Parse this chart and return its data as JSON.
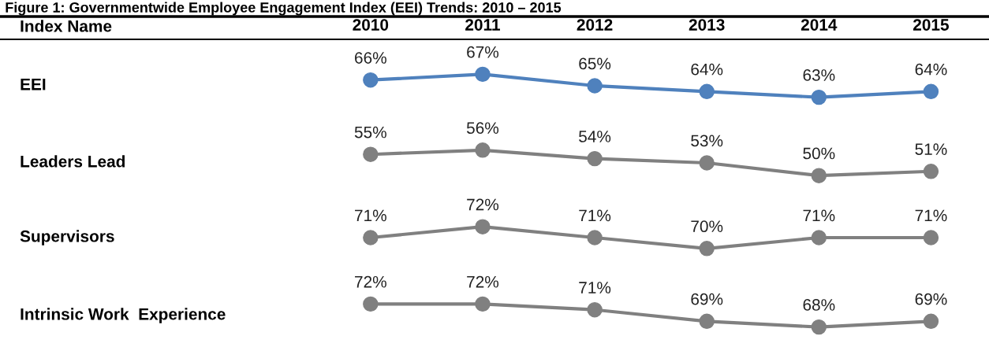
{
  "chart_data": [
    {
      "type": "line",
      "title": "Figure 1: Governmentwide Employee Engagement Index (EEI) Trends: 2010 – 2015",
      "annotations": [
        "Index Name"
      ],
      "ylabel": "EEI",
      "categories": [
        "2010",
        "2011",
        "2012",
        "2013",
        "2014",
        "2015"
      ],
      "tick_labels": "x",
      "series": [
        {
          "color": "#4f81bd",
          "values": [
            66,
            67,
            65,
            64,
            63,
            64
          ],
          "value_labels": [
            "66%",
            "67%",
            "65%",
            "64%",
            "63%",
            "64%"
          ]
        }
      ],
      "marker": "circle",
      "line_style": "solid",
      "grid": false,
      "legend": false
    },
    {
      "type": "line",
      "ylabel": "Leaders Lead",
      "categories": [
        "2010",
        "2011",
        "2012",
        "2013",
        "2014",
        "2015"
      ],
      "tick_labels": false,
      "series": [
        {
          "color": "#808080",
          "values": [
            55,
            56,
            54,
            53,
            50,
            51
          ],
          "value_labels": [
            "55%",
            "56%",
            "54%",
            "53%",
            "50%",
            "51%"
          ]
        }
      ],
      "marker": "circle",
      "line_style": "solid",
      "grid": false,
      "legend": false
    },
    {
      "type": "line",
      "ylabel": "Supervisors",
      "categories": [
        "2010",
        "2011",
        "2012",
        "2013",
        "2014",
        "2015"
      ],
      "tick_labels": false,
      "series": [
        {
          "color": "#808080",
          "values": [
            71,
            72,
            71,
            70,
            71,
            71
          ],
          "value_labels": [
            "71%",
            "72%",
            "71%",
            "70%",
            "71%",
            "71%"
          ]
        }
      ],
      "marker": "circle",
      "line_style": "solid",
      "grid": false,
      "legend": false
    },
    {
      "type": "line",
      "ylabel": "Intrinsic Work  Experience",
      "categories": [
        "2010",
        "2011",
        "2012",
        "2013",
        "2014",
        "2015"
      ],
      "tick_labels": false,
      "series": [
        {
          "color": "#808080",
          "values": [
            72,
            72,
            71,
            69,
            68,
            69
          ],
          "value_labels": [
            "72%",
            "72%",
            "71%",
            "69%",
            "68%",
            "69%"
          ]
        }
      ],
      "marker": "circle",
      "line_style": "solid",
      "grid": false,
      "legend": false
    }
  ]
}
